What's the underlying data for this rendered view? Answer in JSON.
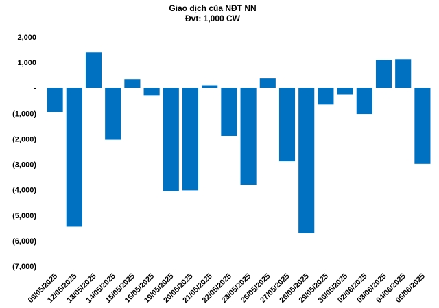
{
  "chart_data": {
    "type": "bar",
    "title": "Giao dịch của NĐT NN",
    "subtitle": "Đvt: 1,000 CW",
    "xlabel": "",
    "ylabel": "",
    "ylim": [
      -7000,
      2000
    ],
    "yticks": [
      2000,
      1000,
      0,
      -1000,
      -2000,
      -3000,
      -4000,
      -5000,
      -6000,
      -7000
    ],
    "ytick_labels": [
      "2,000",
      "1,000",
      "-",
      "(1,000)",
      "(2,000)",
      "(3,000)",
      "(4,000)",
      "(5,000)",
      "(6,000)",
      "(7,000)"
    ],
    "grid": false,
    "legend": "none",
    "bar_color": "#0070C0",
    "categories": [
      "09/05/2025",
      "12/05/2025",
      "13/05/2025",
      "14/05/2025",
      "15/05/2025",
      "16/05/2025",
      "19/05/2025",
      "20/05/2025",
      "21/05/2025",
      "22/05/2025",
      "23/05/2025",
      "26/05/2025",
      "27/05/2025",
      "28/05/2025",
      "29/05/2025",
      "30/05/2025",
      "02/06/2025",
      "03/06/2025",
      "04/06/2025",
      "05/06/2025"
    ],
    "values": [
      -950,
      -5450,
      1400,
      -2030,
      350,
      -300,
      -4050,
      -4020,
      100,
      -1880,
      -3800,
      380,
      -2880,
      -5700,
      -650,
      -250,
      -1020,
      1100,
      1130,
      -2980
    ]
  }
}
